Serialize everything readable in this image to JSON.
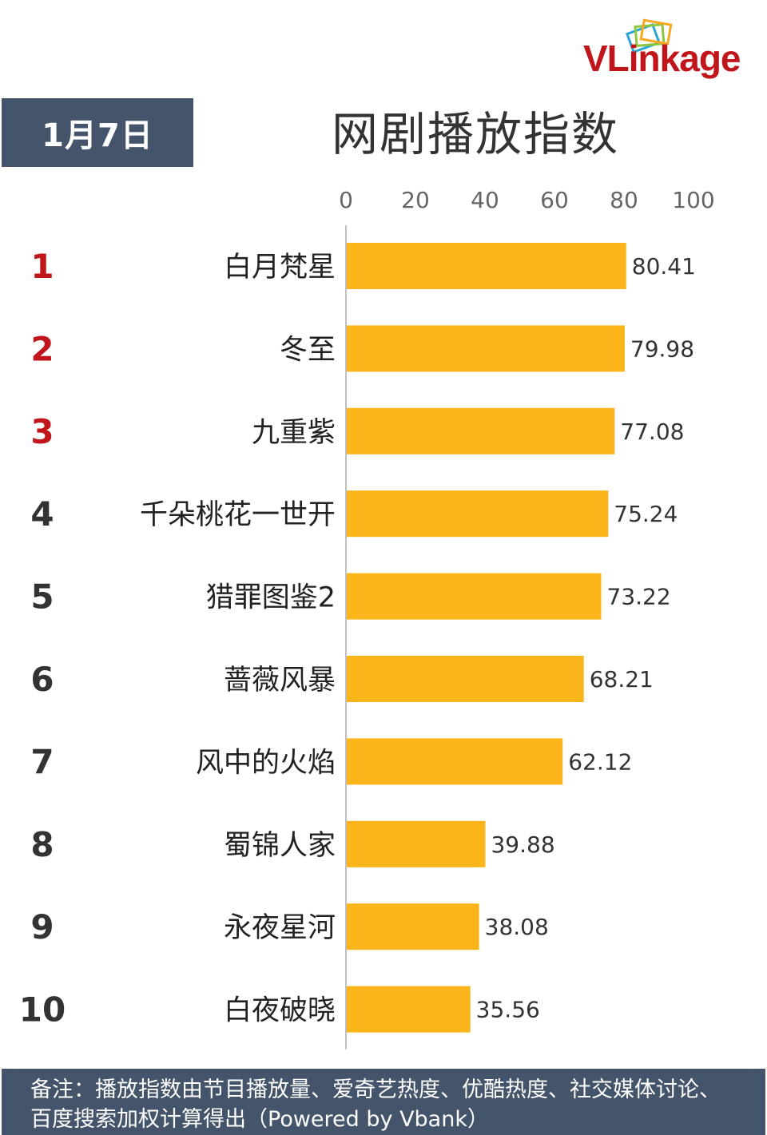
{
  "header": {
    "date": "1月7日",
    "title": "网剧播放指数",
    "logo_text": "VLinkage"
  },
  "footer": {
    "note": "备注：播放指数由节目播放量、爱奇艺热度、优酷热度、社交媒体讨论、百度搜索加权计算得出（Powered by Vbank）"
  },
  "colors": {
    "bar": "#fbb419",
    "rank_top": "#c0161b",
    "rank_rest": "#333333",
    "header_bg": "#44546a"
  },
  "chart_data": {
    "type": "bar",
    "orientation": "horizontal",
    "ranks": [
      "1",
      "2",
      "3",
      "4",
      "5",
      "6",
      "7",
      "8",
      "9",
      "10"
    ],
    "categories": [
      "白月梵星",
      "冬至",
      "九重紫",
      "千朵桃花一世开",
      "猎罪图鉴2",
      "蔷薇风暴",
      "风中的火焰",
      "蜀锦人家",
      "永夜星河",
      "白夜破晓"
    ],
    "values": [
      80.41,
      79.98,
      77.08,
      75.24,
      73.22,
      68.21,
      62.12,
      39.88,
      38.08,
      35.56
    ],
    "value_labels": [
      "80.41",
      "79.98",
      "77.08",
      "75.24",
      "73.22",
      "68.21",
      "62.12",
      "39.88",
      "38.08",
      "35.56"
    ],
    "xticks": [
      "0",
      "20",
      "40",
      "60",
      "80",
      "100"
    ],
    "xlim": [
      0,
      100
    ],
    "title": "网剧播放指数",
    "grid": false,
    "legend": "none"
  }
}
